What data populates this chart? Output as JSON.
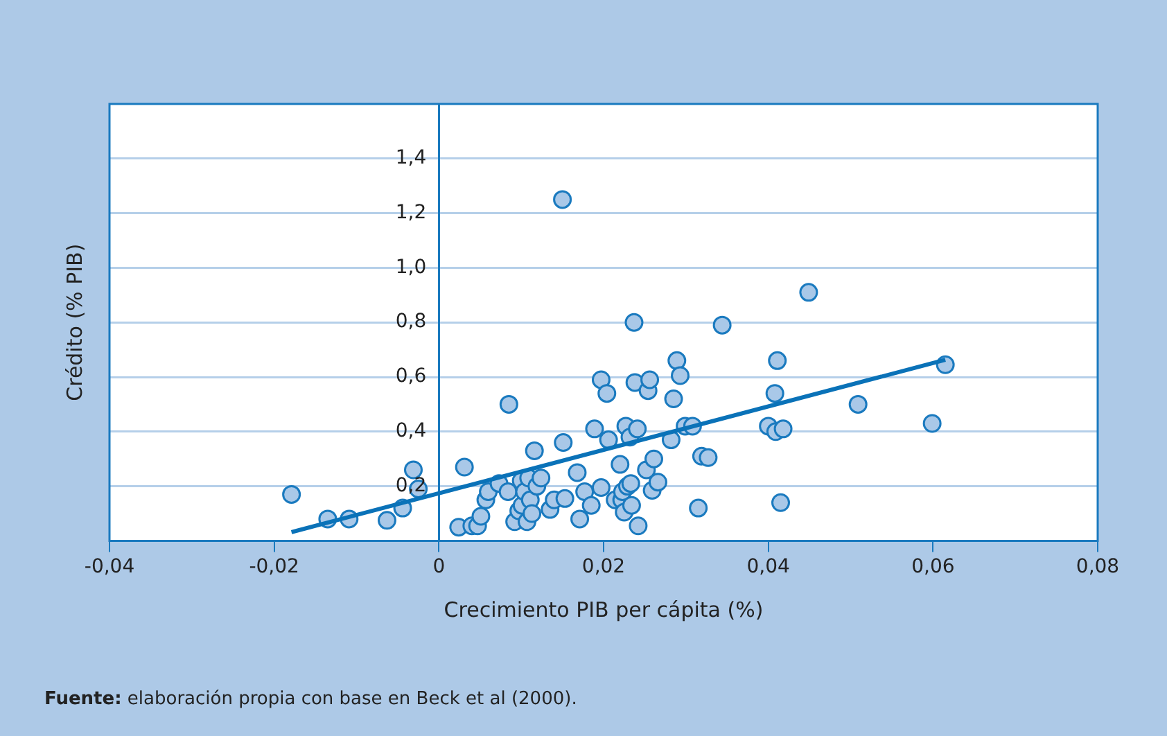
{
  "chart_data": {
    "type": "scatter",
    "xlabel": "Crecimiento PIB per cápita (%)",
    "ylabel": "Crédito (% PIB)",
    "annotations": [
      "Fuente: elaboración propia con base en Beck et al (2000)."
    ],
    "xlim": [
      -0.04,
      0.08
    ],
    "xticks": [
      {
        "value": -0.04,
        "label": "-0,04"
      },
      {
        "value": -0.02,
        "label": "-0,02"
      },
      0,
      {
        "value": 0.02,
        "label": "0,02"
      },
      {
        "value": 0.04,
        "label": "0,04"
      },
      {
        "value": 0.06,
        "label": "0,06"
      },
      {
        "value": 0.08,
        "label": "0,08"
      }
    ],
    "ylim": [
      0,
      1.6
    ],
    "yticks": [
      {
        "value": 0.2,
        "label": "0,2"
      },
      {
        "value": 0.4,
        "label": "0,4"
      },
      {
        "value": 0.6,
        "label": "0,6"
      },
      {
        "value": 0.8,
        "label": "0,8"
      },
      {
        "value": 1.0,
        "label": "1,0"
      },
      {
        "value": 1.2,
        "label": "1,2"
      },
      {
        "value": 1.4,
        "label": "1,4"
      }
    ],
    "grid": "y",
    "legend": false,
    "marker": "circle",
    "series": [
      {
        "type": "scatter",
        "color": "#a9c8e8",
        "x": [
          -0.0179,
          -0.0135,
          -0.0109,
          -0.0063,
          -0.0044,
          -0.0031,
          -0.0025,
          0.0031,
          0.0024,
          0.004,
          0.0047,
          0.0051,
          0.0057,
          0.006,
          0.0073,
          0.0084,
          0.0085,
          0.0092,
          0.0097,
          0.01,
          0.0101,
          0.0104,
          0.0107,
          0.0109,
          0.0111,
          0.0113,
          0.0116,
          0.0119,
          0.0124,
          0.0135,
          0.014,
          0.0151,
          0.015,
          0.0153,
          0.0168,
          0.0171,
          0.0177,
          0.0185,
          0.0189,
          0.0197,
          0.0197,
          0.0204,
          0.0206,
          0.0214,
          0.022,
          0.0222,
          0.0223,
          0.0225,
          0.0227,
          0.0229,
          0.0232,
          0.0233,
          0.0234,
          0.0237,
          0.0238,
          0.0241,
          0.0242,
          0.0252,
          0.0254,
          0.0256,
          0.0259,
          0.0261,
          0.0266,
          0.0282,
          0.0285,
          0.0289,
          0.0293,
          0.0299,
          0.0308,
          0.0315,
          0.0319,
          0.0327,
          0.0344,
          0.04,
          0.0408,
          0.0409,
          0.0411,
          0.0415,
          0.0418,
          0.0449,
          0.0509,
          0.0599,
          0.0615
        ],
        "values": [
          0.17,
          0.08,
          0.08,
          0.075,
          0.12,
          0.26,
          0.19,
          0.27,
          0.05,
          0.055,
          0.055,
          0.09,
          0.15,
          0.18,
          0.21,
          0.18,
          0.5,
          0.07,
          0.11,
          0.22,
          0.13,
          0.18,
          0.07,
          0.23,
          0.15,
          0.1,
          0.33,
          0.2,
          0.23,
          0.115,
          0.15,
          0.36,
          1.25,
          0.155,
          0.25,
          0.08,
          0.18,
          0.13,
          0.41,
          0.59,
          0.195,
          0.54,
          0.37,
          0.15,
          0.28,
          0.15,
          0.18,
          0.105,
          0.42,
          0.2,
          0.38,
          0.21,
          0.13,
          0.8,
          0.58,
          0.41,
          0.055,
          0.26,
          0.55,
          0.59,
          0.185,
          0.3,
          0.215,
          0.37,
          0.52,
          0.66,
          0.605,
          0.42,
          0.42,
          0.12,
          0.31,
          0.305,
          0.79,
          0.42,
          0.54,
          0.4,
          0.66,
          0.14,
          0.41,
          0.91,
          0.5,
          0.43,
          0.645
        ]
      },
      {
        "type": "line",
        "color": "#0a72b8",
        "marker": "none",
        "x": [
          -0.0179,
          0.0615
        ],
        "values": [
          0.032,
          0.663
        ]
      }
    ]
  }
}
